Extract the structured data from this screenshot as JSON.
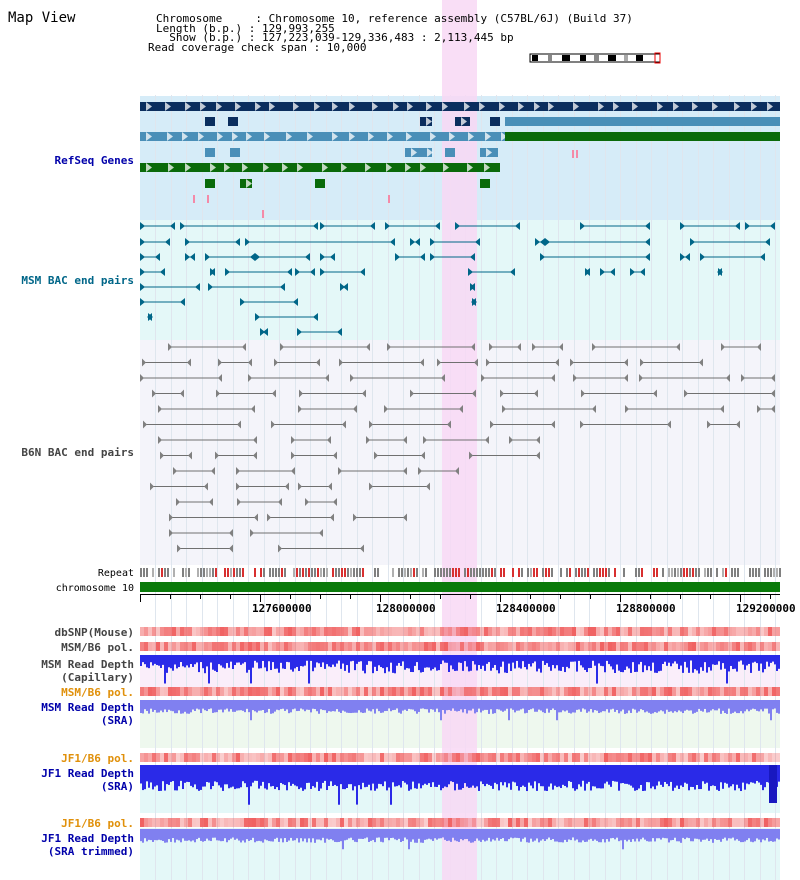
{
  "title": "Map View",
  "header": {
    "chromosome_label": "Chromosome     : Chromosome 10, reference assembly (C57BL/6J) (Build 37)",
    "length_label": "Length (b.p.) : 129,993,255",
    "show_label": "  Show (b.p.) : 127,223,039-129,336,483 : 2,113,445 bp",
    "coverage_label": "Read coverage check span : 10,000"
  },
  "tracks": {
    "refseq": "RefSeq Genes",
    "msm_bac": "MSM BAC end pairs",
    "b6n_bac": "B6N BAC end pairs",
    "repeat": "Repeat",
    "chromosome": "chromosome 10",
    "dbsnp": "dbSNP(Mouse)",
    "msm_b6_pol_1": "MSM/B6 pol.",
    "msm_read_depth_cap_1": "MSM Read Depth",
    "msm_read_depth_cap_2": "(Capillary)",
    "msm_b6_pol_2": "MSM/B6 pol.",
    "msm_read_depth_sra_1": "MSM Read Depth",
    "msm_read_depth_sra_2": "(SRA)",
    "jf1_b6_pol_1": "JF1/B6 pol.",
    "jf1_read_depth_sra_1": "JF1 Read Depth",
    "jf1_read_depth_sra_2": "(SRA)",
    "jf1_b6_pol_2": "JF1/B6 pol.",
    "jf1_read_depth_trim_1": "JF1 Read Depth",
    "jf1_read_depth_trim_2": "(SRA trimmed)"
  },
  "ruler": {
    "labels": [
      "127600000",
      "128000000",
      "128400000",
      "128800000",
      "129200000"
    ]
  },
  "colors": {
    "refseq_bg": "#d6ecf8",
    "msm_bg": "#e4f8f8",
    "b6n_bg": "#f4f4fa",
    "highlight": "#f8d8f4",
    "gene_dark": "#0b2e5e",
    "gene_mid": "#4a8fb8",
    "gene_green": "#0a6a0a",
    "chromosome_bar": "#0a7a0a",
    "depth_blue": "#2a2ae8",
    "depth_light": "#8080f0",
    "pol_red": "#f06060",
    "label_blue": "#0000aa",
    "label_orange": "#e0900a",
    "label_teal": "#006688",
    "label_gray": "#444444"
  }
}
